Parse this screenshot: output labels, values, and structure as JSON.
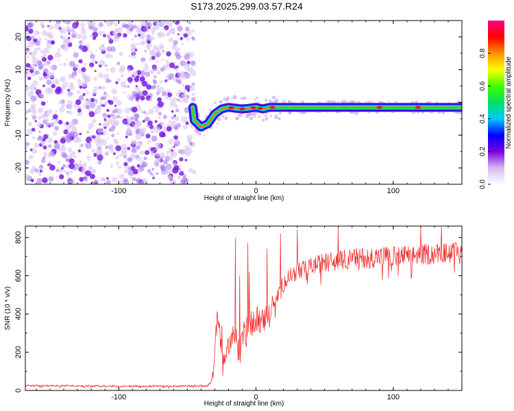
{
  "colors": {
    "spectrum_dot": "#7a1ee0",
    "snr_line": "#f03030",
    "colormap": [
      "#ffffff",
      "#d8b8f0",
      "#7a00e0",
      "#0000ff",
      "#00c8ff",
      "#00e060",
      "#40ff00",
      "#ffff00",
      "#ff9000",
      "#ff0000",
      "#ff0080"
    ]
  },
  "chart_data": [
    {
      "type": "heatmap",
      "title": "S173.2025.299.03.57.R24",
      "xlabel": "Height of straight line (km)",
      "ylabel": "Frequency (Hz)",
      "xlim": [
        -168,
        150
      ],
      "ylim": [
        -25,
        25
      ],
      "xticks": [
        {
          "v": -100,
          "label": "-100"
        },
        {
          "v": 0,
          "label": "0"
        },
        {
          "v": 100,
          "label": "100"
        }
      ],
      "yticks": [
        {
          "v": -20,
          "label": "-20"
        },
        {
          "v": -10,
          "label": "-10"
        },
        {
          "v": 0,
          "label": "0"
        },
        {
          "v": 10,
          "label": "10"
        },
        {
          "v": 20,
          "label": "20"
        }
      ],
      "noise_region_x": [
        -168,
        -45
      ],
      "ridge_track": [
        {
          "x": -45,
          "f": -5.5
        },
        {
          "x": -40,
          "f": -7.5
        },
        {
          "x": -35,
          "f": -6.5
        },
        {
          "x": -30,
          "f": -3.5
        },
        {
          "x": -25,
          "f": -2
        },
        {
          "x": -20,
          "f": -1.5
        },
        {
          "x": -15,
          "f": -1.8
        },
        {
          "x": -10,
          "f": -2
        },
        {
          "x": -5,
          "f": -1.8
        },
        {
          "x": 0,
          "f": -1.5
        },
        {
          "x": 5,
          "f": -2
        },
        {
          "x": 10,
          "f": -1.5
        },
        {
          "x": 15,
          "f": -1.5
        },
        {
          "x": 20,
          "f": -1.5
        },
        {
          "x": 150,
          "f": -1.5
        }
      ],
      "colorbar": {
        "label": "Normalized spectral amplitude",
        "range": [
          0,
          1
        ],
        "ticks": [
          {
            "v": 0.0,
            "label": "0.0"
          },
          {
            "v": 0.2,
            "label": "0.2"
          },
          {
            "v": 0.4,
            "label": "0.4"
          },
          {
            "v": 0.6,
            "label": "0.6"
          },
          {
            "v": 0.8,
            "label": "0.8"
          }
        ]
      }
    },
    {
      "type": "line",
      "xlabel": "Height of straight line (km)",
      "ylabel": "SNR (10 * v/v)",
      "xlim": [
        -168,
        150
      ],
      "ylim": [
        0,
        860
      ],
      "xticks": [
        {
          "v": -100,
          "label": "-100"
        },
        {
          "v": 0,
          "label": "0"
        },
        {
          "v": 100,
          "label": "100"
        }
      ],
      "yticks": [
        {
          "v": 0,
          "label": "0"
        },
        {
          "v": 200,
          "label": "200"
        },
        {
          "v": 400,
          "label": "400"
        },
        {
          "v": 600,
          "label": "600"
        },
        {
          "v": 800,
          "label": "800"
        }
      ],
      "series": [
        {
          "name": "SNR",
          "x": [
            -168,
            -140,
            -100,
            -60,
            -35,
            -32,
            -30,
            -28,
            -25,
            -22,
            -20,
            -18,
            -15,
            -12,
            -10,
            -5,
            0,
            5,
            10,
            15,
            20,
            25,
            30,
            40,
            50,
            60,
            70,
            80,
            90,
            100,
            110,
            120,
            130,
            140,
            150
          ],
          "y": [
            25,
            25,
            22,
            22,
            25,
            60,
            220,
            380,
            220,
            140,
            250,
            260,
            300,
            180,
            290,
            330,
            380,
            360,
            420,
            480,
            560,
            600,
            620,
            650,
            670,
            680,
            690,
            695,
            700,
            700,
            705,
            710,
            715,
            720,
            720
          ],
          "amp": [
            10,
            10,
            10,
            10,
            12,
            40,
            140,
            130,
            120,
            90,
            120,
            120,
            160,
            120,
            150,
            140,
            140,
            140,
            120,
            110,
            100,
            90,
            90,
            90,
            100,
            100,
            110,
            110,
            110,
            110,
            110,
            110,
            110,
            110,
            110
          ],
          "spikes": [
            {
              "x": -28,
              "y": 400
            },
            {
              "x": -25,
              "y": 340
            },
            {
              "x": -15,
              "y": 795
            },
            {
              "x": -12,
              "y": 600
            },
            {
              "x": -6,
              "y": 770
            },
            {
              "x": -5,
              "y": 620
            },
            {
              "x": 8,
              "y": 740
            },
            {
              "x": 18,
              "y": 820
            },
            {
              "x": 30,
              "y": 840
            },
            {
              "x": 60,
              "y": 850
            },
            {
              "x": 120,
              "y": 860
            },
            {
              "x": 135,
              "y": 855
            }
          ]
        }
      ]
    }
  ]
}
